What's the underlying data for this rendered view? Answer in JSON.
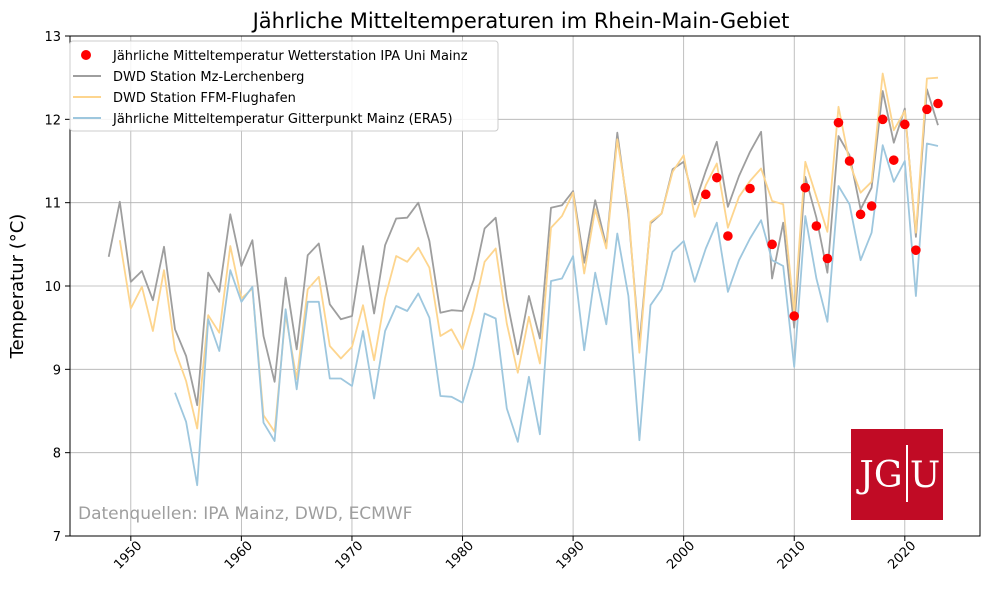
{
  "chart_data": {
    "type": "line",
    "title": "Jährliche Mitteltemperaturen im Rhein-Main-Gebiet",
    "xlabel": "",
    "ylabel": "Temperatur (°C)",
    "xlim": [
      1944.5,
      2026.8
    ],
    "ylim": [
      7,
      13
    ],
    "x_ticks": [
      1950,
      1960,
      1970,
      1980,
      1990,
      2000,
      2010,
      2020
    ],
    "y_ticks": [
      7,
      8,
      9,
      10,
      11,
      12,
      13
    ],
    "grid": true,
    "legend_position": "top-left",
    "series": [
      {
        "name": "Jährliche Mitteltemperatur Wetterstation IPA Uni Mainz",
        "kind": "scatter",
        "color": "#ff0000",
        "x": [
          2002,
          2003,
          2004,
          2006,
          2008,
          2010,
          2011,
          2012,
          2013,
          2014,
          2015,
          2016,
          2017,
          2018,
          2019,
          2020,
          2021,
          2022,
          2023
        ],
        "y": [
          11.1,
          11.3,
          10.6,
          11.17,
          10.5,
          9.64,
          11.18,
          10.72,
          10.33,
          11.96,
          11.5,
          10.86,
          10.96,
          12.0,
          11.51,
          11.94,
          10.43,
          12.12,
          12.19
        ]
      },
      {
        "name": "DWD Station Mz-Lerchenberg",
        "kind": "line",
        "color": "#9e9e9e",
        "x": [
          1948,
          1949,
          1950,
          1951,
          1952,
          1953,
          1954,
          1955,
          1956,
          1957,
          1958,
          1959,
          1960,
          1961,
          1962,
          1963,
          1964,
          1965,
          1966,
          1967,
          1968,
          1969,
          1970,
          1971,
          1972,
          1973,
          1974,
          1975,
          1976,
          1977,
          1978,
          1979,
          1980,
          1981,
          1982,
          1983,
          1984,
          1985,
          1986,
          1987,
          1988,
          1989,
          1990,
          1991,
          1992,
          1993,
          1994,
          1995,
          1996,
          1997,
          1998,
          1999,
          2000,
          2001,
          2002,
          2003,
          2004,
          2005,
          2006,
          2007,
          2008,
          2009,
          2010,
          2011,
          2012,
          2013,
          2014,
          2015,
          2016,
          2017,
          2018,
          2019,
          2020,
          2021,
          2022,
          2023
        ],
        "y": [
          10.35,
          11.01,
          10.05,
          10.18,
          9.83,
          10.47,
          9.48,
          9.16,
          8.57,
          10.16,
          9.93,
          10.86,
          10.24,
          10.55,
          9.4,
          8.85,
          10.1,
          9.24,
          10.37,
          10.51,
          9.78,
          9.6,
          9.64,
          10.48,
          9.67,
          10.49,
          10.81,
          10.82,
          11.0,
          10.54,
          9.68,
          9.71,
          9.7,
          10.07,
          10.69,
          10.82,
          9.84,
          9.18,
          9.88,
          9.37,
          10.94,
          10.97,
          11.14,
          10.28,
          11.03,
          10.48,
          11.84,
          10.86,
          9.3,
          10.75,
          10.87,
          11.4,
          11.49,
          10.98,
          11.38,
          11.73,
          10.95,
          11.32,
          11.61,
          11.85,
          10.09,
          10.76,
          9.5,
          11.31,
          10.82,
          10.16,
          11.8,
          11.57,
          10.92,
          11.18,
          12.34,
          11.72,
          12.13,
          10.59,
          12.36,
          11.93
        ]
      },
      {
        "name": "DWD Station FFM-Flughafen",
        "kind": "line",
        "color": "#fdd58e",
        "x": [
          1949,
          1950,
          1951,
          1952,
          1953,
          1954,
          1955,
          1956,
          1957,
          1958,
          1959,
          1960,
          1961,
          1962,
          1963,
          1964,
          1965,
          1966,
          1967,
          1968,
          1969,
          1970,
          1971,
          1972,
          1973,
          1974,
          1975,
          1976,
          1977,
          1978,
          1979,
          1980,
          1981,
          1982,
          1983,
          1984,
          1985,
          1986,
          1987,
          1988,
          1989,
          1990,
          1991,
          1992,
          1993,
          1994,
          1995,
          1996,
          1997,
          1998,
          1999,
          2000,
          2001,
          2002,
          2003,
          2004,
          2005,
          2006,
          2007,
          2008,
          2009,
          2010,
          2011,
          2012,
          2013,
          2014,
          2015,
          2016,
          2017,
          2018,
          2019,
          2020,
          2021,
          2022,
          2023
        ],
        "y": [
          10.55,
          9.73,
          9.99,
          9.46,
          10.19,
          9.23,
          8.86,
          8.29,
          9.65,
          9.44,
          10.48,
          9.85,
          9.97,
          8.45,
          8.25,
          9.66,
          8.88,
          9.96,
          10.11,
          9.28,
          9.13,
          9.27,
          9.77,
          9.11,
          9.86,
          10.36,
          10.29,
          10.46,
          10.22,
          9.4,
          9.48,
          9.24,
          9.7,
          10.29,
          10.45,
          9.55,
          8.96,
          9.63,
          9.07,
          10.7,
          10.84,
          11.12,
          10.15,
          10.92,
          10.45,
          11.76,
          10.92,
          9.2,
          10.77,
          10.87,
          11.37,
          11.57,
          10.83,
          11.21,
          11.47,
          10.7,
          11.07,
          11.26,
          11.41,
          11.02,
          10.98,
          9.67,
          11.49,
          11.07,
          10.65,
          12.15,
          11.48,
          11.12,
          11.25,
          12.55,
          11.87,
          12.1,
          10.64,
          12.49,
          12.5
        ]
      },
      {
        "name": "Jährliche Mitteltemperatur Gitterpunkt Mainz (ERA5)",
        "kind": "line",
        "color": "#9ec7de",
        "x": [
          1954,
          1955,
          1956,
          1957,
          1958,
          1959,
          1960,
          1961,
          1962,
          1963,
          1964,
          1965,
          1966,
          1967,
          1968,
          1969,
          1970,
          1971,
          1972,
          1973,
          1974,
          1975,
          1976,
          1977,
          1978,
          1979,
          1980,
          1981,
          1982,
          1983,
          1984,
          1985,
          1986,
          1987,
          1988,
          1989,
          1990,
          1991,
          1992,
          1993,
          1994,
          1995,
          1996,
          1997,
          1998,
          1999,
          2000,
          2001,
          2002,
          2003,
          2004,
          2005,
          2006,
          2007,
          2008,
          2009,
          2010,
          2011,
          2012,
          2013,
          2014,
          2015,
          2016,
          2017,
          2018,
          2019,
          2020,
          2021,
          2022,
          2023
        ],
        "y": [
          8.72,
          8.37,
          7.61,
          9.6,
          9.22,
          10.19,
          9.81,
          9.99,
          8.36,
          8.14,
          9.72,
          8.76,
          9.81,
          9.81,
          8.89,
          8.89,
          8.8,
          9.46,
          8.65,
          9.46,
          9.76,
          9.7,
          9.91,
          9.62,
          8.68,
          8.67,
          8.6,
          9.04,
          9.67,
          9.61,
          8.53,
          8.13,
          8.91,
          8.22,
          10.06,
          10.09,
          10.36,
          9.23,
          10.16,
          9.54,
          10.63,
          9.88,
          8.15,
          9.77,
          9.96,
          10.41,
          10.54,
          10.05,
          10.45,
          10.76,
          9.93,
          10.31,
          10.57,
          10.79,
          10.31,
          10.24,
          9.03,
          10.84,
          10.09,
          9.57,
          11.2,
          10.98,
          10.31,
          10.64,
          11.69,
          11.25,
          11.5,
          9.88,
          11.71,
          11.68
        ]
      }
    ],
    "annotations": [
      "Datenquellen: IPA Mainz, DWD, ECMWF"
    ]
  },
  "logo": {
    "text_left": "JG",
    "text_right": "U",
    "color": "#c10b25"
  }
}
